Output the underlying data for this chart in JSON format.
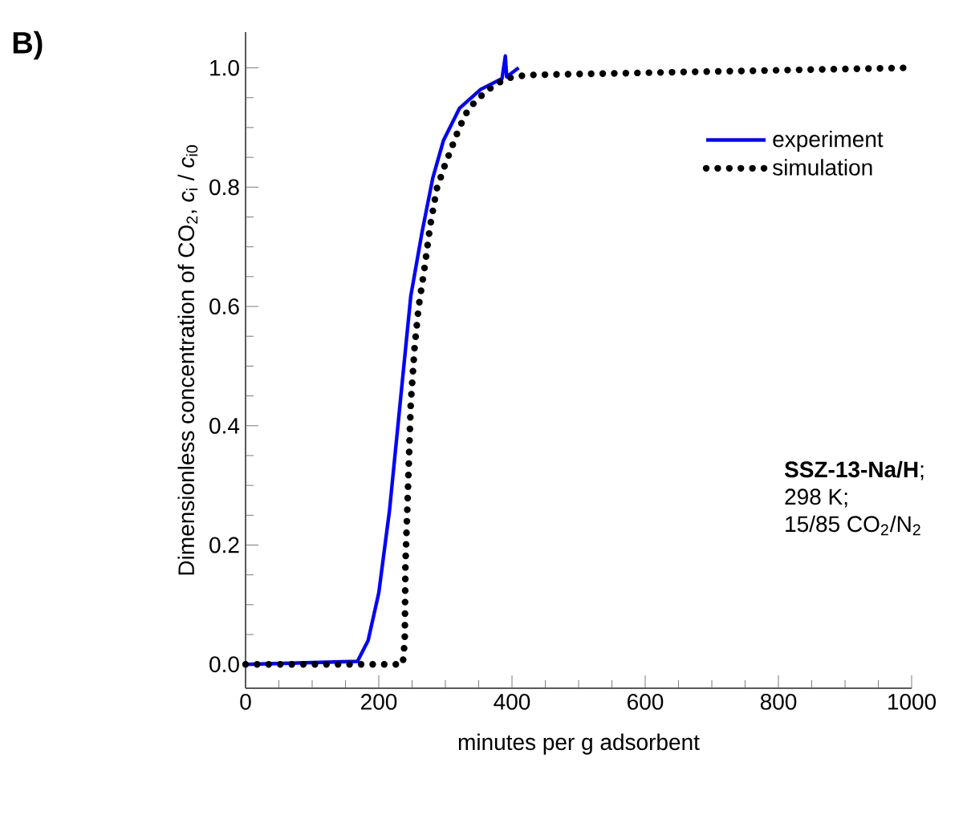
{
  "chart_data": {
    "type": "line",
    "xlabel": "minutes per g adsorbent",
    "ylabel": "Dimensionless concentration of CO$_{2}$, *c*$_{i}$ / *c*$_{i0}$",
    "xlim": [
      0,
      1000
    ],
    "ylim": [
      -0.04,
      1.06
    ],
    "xticks": [
      0,
      200,
      400,
      600,
      800,
      1000
    ],
    "yticks": [
      {
        "value": 0,
        "label": "0.0"
      },
      {
        "value": 0.2,
        "label": "0.2"
      },
      {
        "value": 0.4,
        "label": "0.4"
      },
      {
        "value": 0.6,
        "label": "0.6"
      },
      {
        "value": 0.8,
        "label": "0.8"
      },
      {
        "value": 1,
        "label": "1.0"
      }
    ],
    "legend": "top right",
    "grid": false,
    "series": [
      {
        "name": "experiment",
        "color": "#0000ff",
        "line_style": "solid",
        "x": [
          0,
          168,
          184,
          200,
          216,
          232,
          248,
          265,
          281,
          297,
          321,
          353,
          385,
          390,
          392,
          410
        ],
        "values": [
          0,
          0.005,
          0.04,
          0.12,
          0.257,
          0.437,
          0.617,
          0.725,
          0.815,
          0.878,
          0.932,
          0.964,
          0.982,
          1.02,
          0.985,
          1.0
        ]
      },
      {
        "name": "simulation",
        "color": "#000000",
        "line_style": "dotted",
        "x": [
          0,
          236,
          239,
          240,
          244,
          248,
          254,
          260,
          269,
          277,
          287,
          298,
          309,
          321,
          335,
          361,
          390,
          422,
          990
        ],
        "values": [
          0,
          0,
          0.04,
          0.167,
          0.3,
          0.437,
          0.535,
          0.6,
          0.667,
          0.734,
          0.797,
          0.833,
          0.865,
          0.9,
          0.932,
          0.961,
          0.982,
          0.988,
          1.0
        ]
      }
    ],
    "annotations": [
      "B)",
      "**SSZ-13-Na/H**;",
      "298 K;",
      "15/85 CO$_{2}$/N$_{2}$"
    ]
  }
}
